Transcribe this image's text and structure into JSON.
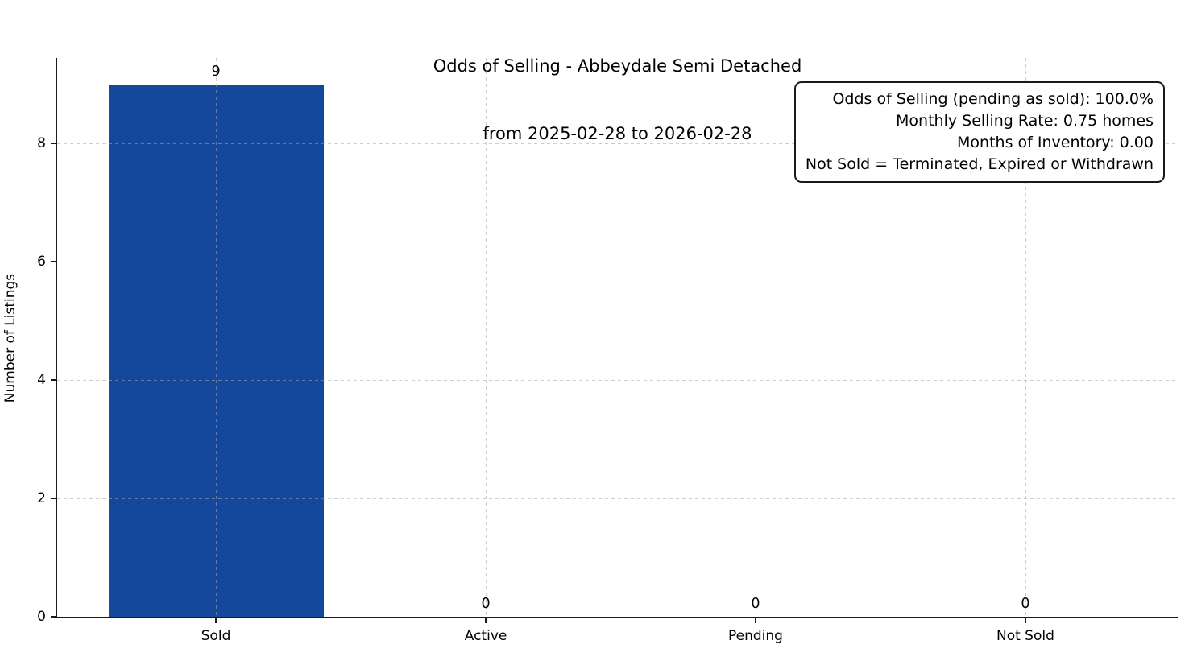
{
  "title": {
    "line1": "Odds of Selling - Abbeydale Semi Detached",
    "line2": "from 2025-02-28 to 2026-02-28"
  },
  "annotation_box": {
    "lines": [
      "Odds of Selling (pending as sold): 100.0%",
      "Monthly Selling Rate: 0.75 homes",
      "Months of Inventory: 0.00",
      "Not Sold = Terminated, Expired or Withdrawn"
    ]
  },
  "chart_data": {
    "type": "bar",
    "title": "Odds of Selling - Abbeydale Semi Detached",
    "subtitle": "from 2025-02-28 to 2026-02-28",
    "categories": [
      "Sold",
      "Active",
      "Pending",
      "Not Sold"
    ],
    "values": [
      9,
      0,
      0,
      0
    ],
    "bar_value_labels": [
      "9",
      "0",
      "0",
      "0"
    ],
    "xlabel": "",
    "ylabel": "Number of Listings",
    "ylim": [
      0,
      9.45
    ],
    "yticks": [
      0,
      2,
      4,
      6,
      8
    ],
    "grid": "dashed, both axes, light gray, drawn over bars",
    "legend": "none",
    "bar_color": "#14489c",
    "annotations": [
      "Odds of Selling (pending as sold): 100.0%",
      "Monthly Selling Rate: 0.75 homes",
      "Months of Inventory: 0.00",
      "Not Sold = Terminated, Expired or Withdrawn"
    ],
    "annotation_position": "top-right, rounded black-bordered box, right-aligned text"
  },
  "colors": {
    "bar": "#14489c",
    "spine": "#1a1a1a",
    "grid": "#a5a5a5",
    "background": "#ffffff",
    "text": "#000000"
  }
}
